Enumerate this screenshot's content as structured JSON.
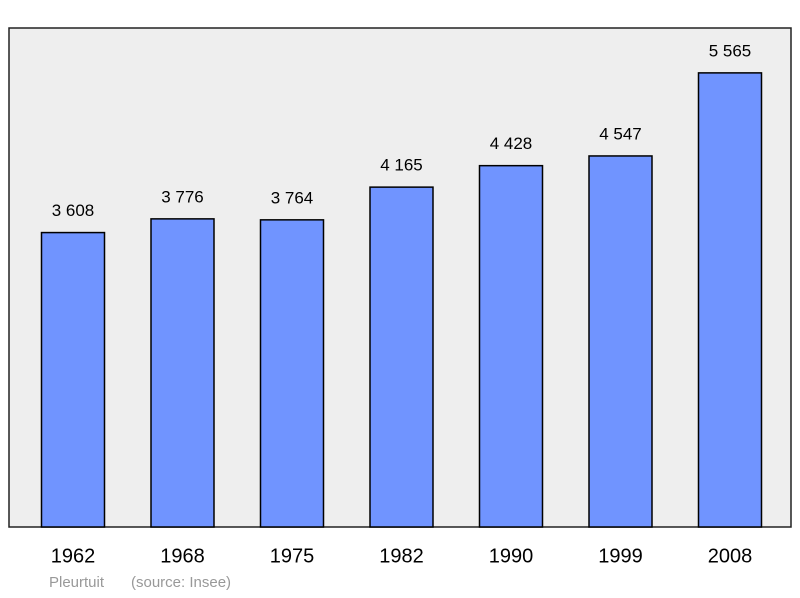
{
  "chart_data": {
    "type": "bar",
    "categories": [
      "1962",
      "1968",
      "1975",
      "1982",
      "1990",
      "1999",
      "2008"
    ],
    "values": [
      3608,
      3776,
      3764,
      4165,
      4428,
      4547,
      5565
    ],
    "value_labels": [
      "3 608",
      "3 776",
      "3 764",
      "4 165",
      "4 428",
      "4 547",
      "5 565"
    ],
    "color": "#7094ff",
    "ylim": [
      0,
      6115
    ],
    "caption": "Pleurtuit",
    "source": "(source: Insee)"
  }
}
